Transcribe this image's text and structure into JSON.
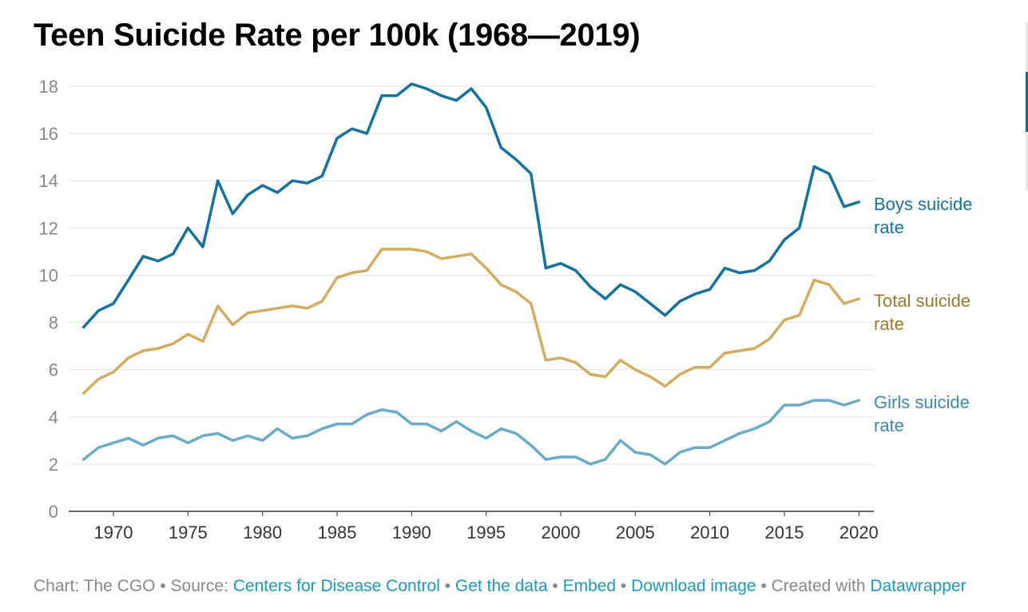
{
  "title": "Teen Suicide Rate per 100k (1968—2019)",
  "footer": {
    "chart_prefix": "Chart: The CGO",
    "source_prefix": "Source:",
    "source_link": "Centers for Disease Control",
    "get_data": "Get the data",
    "embed": "Embed",
    "download": "Download image",
    "created_prefix": "Created with",
    "created_link": "Datawrapper",
    "separator": "•"
  },
  "chart_data": {
    "type": "line",
    "title": "Teen Suicide Rate per 100k (1968—2019)",
    "xlabel": "",
    "ylabel": "",
    "xlim": [
      1967,
      2021
    ],
    "ylim": [
      0,
      18
    ],
    "y_ticks": [
      0,
      2,
      4,
      6,
      8,
      10,
      12,
      14,
      16,
      18
    ],
    "x_ticks": [
      1970,
      1975,
      1980,
      1985,
      1990,
      1995,
      2000,
      2005,
      2010,
      2015,
      2020
    ],
    "grid": "horizontal",
    "legend": "direct labels at right end of lines",
    "x": [
      1968,
      1969,
      1970,
      1971,
      1972,
      1973,
      1974,
      1975,
      1976,
      1977,
      1978,
      1979,
      1980,
      1981,
      1982,
      1983,
      1984,
      1985,
      1986,
      1987,
      1988,
      1989,
      1990,
      1991,
      1992,
      1993,
      1994,
      1995,
      1996,
      1997,
      1998,
      1999,
      2000,
      2001,
      2002,
      2003,
      2004,
      2005,
      2006,
      2007,
      2008,
      2009,
      2010,
      2011,
      2012,
      2013,
      2014,
      2015,
      2016,
      2017,
      2018,
      2019,
      2020
    ],
    "series": [
      {
        "name": "Boys suicide rate",
        "label_lines": [
          "Boys suicide",
          "rate"
        ],
        "color": "#15729a",
        "values": [
          7.8,
          8.5,
          8.8,
          9.8,
          10.8,
          10.6,
          10.9,
          12.0,
          11.2,
          14.0,
          12.6,
          13.4,
          13.8,
          13.5,
          14.0,
          13.9,
          14.2,
          15.8,
          16.2,
          16.0,
          17.6,
          17.6,
          18.1,
          17.9,
          17.6,
          17.4,
          17.9,
          17.1,
          15.4,
          14.9,
          14.3,
          10.3,
          10.5,
          10.2,
          9.5,
          9.0,
          9.6,
          9.3,
          8.8,
          8.3,
          8.9,
          9.2,
          9.4,
          10.3,
          10.1,
          10.2,
          10.6,
          11.5,
          12.0,
          14.6,
          14.3,
          12.9,
          13.1
        ]
      },
      {
        "name": "Total suicide rate",
        "label_lines": [
          "Total suicide",
          "rate"
        ],
        "color": "#d3ad5f",
        "label_color": "#9a7a2e",
        "values": [
          5.0,
          5.6,
          5.9,
          6.5,
          6.8,
          6.9,
          7.1,
          7.5,
          7.2,
          8.7,
          7.9,
          8.4,
          8.5,
          8.6,
          8.7,
          8.6,
          8.9,
          9.9,
          10.1,
          10.2,
          11.1,
          11.1,
          11.1,
          11.0,
          10.7,
          10.8,
          10.9,
          10.3,
          9.6,
          9.3,
          8.8,
          6.4,
          6.5,
          6.3,
          5.8,
          5.7,
          6.4,
          6.0,
          5.7,
          5.3,
          5.8,
          6.1,
          6.1,
          6.7,
          6.8,
          6.9,
          7.3,
          8.1,
          8.3,
          9.8,
          9.6,
          8.8,
          9.0
        ]
      },
      {
        "name": "Girls suicide rate",
        "label_lines": [
          "Girls suicide",
          "rate"
        ],
        "color": "#6aabc8",
        "label_color": "#3d8aab",
        "values": [
          2.2,
          2.7,
          2.9,
          3.1,
          2.8,
          3.1,
          3.2,
          2.9,
          3.2,
          3.3,
          3.0,
          3.2,
          3.0,
          3.5,
          3.1,
          3.2,
          3.5,
          3.7,
          3.7,
          4.1,
          4.3,
          4.2,
          3.7,
          3.7,
          3.4,
          3.8,
          3.4,
          3.1,
          3.5,
          3.3,
          2.8,
          2.2,
          2.3,
          2.3,
          2.0,
          2.2,
          3.0,
          2.5,
          2.4,
          2.0,
          2.5,
          2.7,
          2.7,
          3.0,
          3.3,
          3.5,
          3.8,
          4.5,
          4.5,
          4.7,
          4.7,
          4.5,
          4.7
        ]
      }
    ]
  }
}
